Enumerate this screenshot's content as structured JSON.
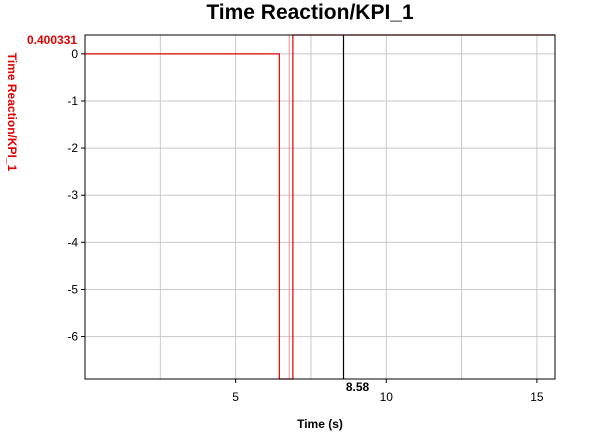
{
  "chart_data": {
    "type": "line",
    "title": "Time Reaction/KPI_1",
    "xlabel": "Time (s)",
    "ylabel": "Time Reaction/KPI_1",
    "xlim": [
      0,
      15.6
    ],
    "ylim": [
      -6.9,
      0.4
    ],
    "x_ticks": [
      5,
      10,
      15
    ],
    "y_ticks": [
      0,
      -1,
      -2,
      -3,
      -4,
      -5,
      -6
    ],
    "x_grid_lines": [
      2.5,
      5,
      7.5,
      10,
      12.5,
      15
    ],
    "y_grid_lines": [
      0,
      -1,
      -2,
      -3,
      -4,
      -5,
      -6
    ],
    "grid": true,
    "series": [
      {
        "color": "#e00000",
        "points": [
          [
            0,
            0
          ],
          [
            6.45,
            0
          ],
          [
            6.45,
            -6.9
          ],
          [
            6.9,
            -6.9
          ],
          [
            6.9,
            0.4
          ],
          [
            15.6,
            0.4
          ]
        ]
      },
      {
        "color": "#f4a0a0",
        "points": [
          [
            6.78,
            -6.9
          ],
          [
            6.78,
            0.4
          ]
        ]
      }
    ],
    "cursor": {
      "x": 8.58,
      "label": "8.58"
    },
    "y_readout": "0.400331"
  }
}
